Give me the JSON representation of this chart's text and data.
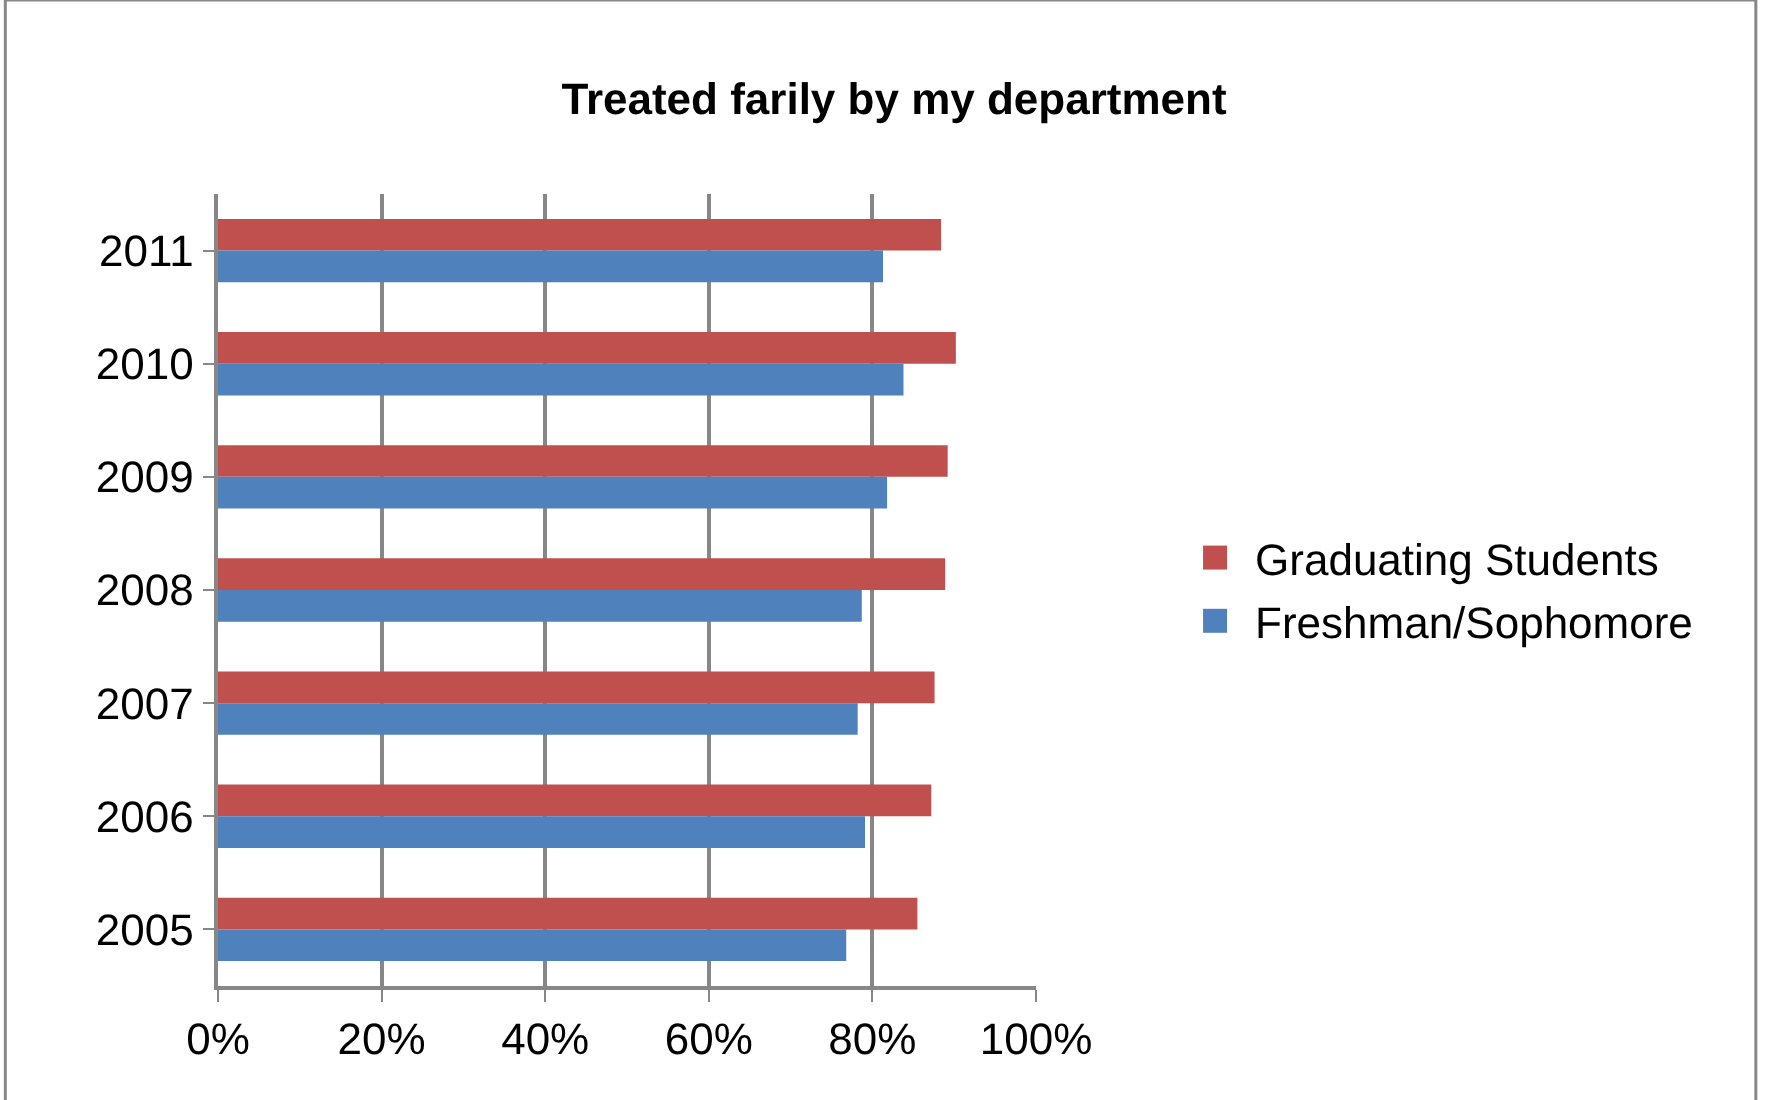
{
  "chart_data": {
    "type": "bar",
    "orientation": "horizontal",
    "title": "Treated farily by my department",
    "categories": [
      "2011",
      "2010",
      "2009",
      "2008",
      "2007",
      "2006",
      "2005"
    ],
    "series": [
      {
        "name": "Graduating Students",
        "color": "#c0504d",
        "values": [
          88.4,
          90.2,
          89.2,
          88.9,
          87.6,
          87.2,
          85.5
        ]
      },
      {
        "name": "Freshman/Sophomore",
        "color": "#4f81bd",
        "values": [
          81.3,
          83.8,
          81.8,
          78.7,
          78.2,
          79.1,
          76.8
        ]
      }
    ],
    "xlim": [
      0,
      100
    ],
    "xticks": [
      {
        "value": 0,
        "label": "0%"
      },
      {
        "value": 20,
        "label": "20%"
      },
      {
        "value": 40,
        "label": "40%"
      },
      {
        "value": 60,
        "label": "60%"
      },
      {
        "value": 80,
        "label": "80%"
      },
      {
        "value": 100,
        "label": "100%"
      }
    ],
    "grid": "x",
    "legend": "right"
  }
}
